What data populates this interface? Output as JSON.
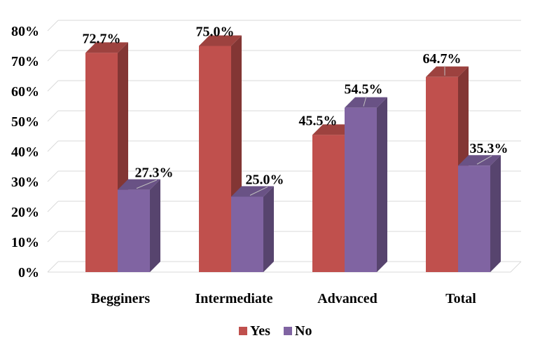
{
  "chart_data": {
    "type": "bar",
    "categories": [
      "Begginers",
      "Intermediate",
      "Advanced",
      "Total"
    ],
    "series": [
      {
        "name": "Yes",
        "values": [
          72.7,
          75.0,
          45.5,
          64.7
        ],
        "color": "#C0504D",
        "labels": [
          "72.7%",
          "75.0%",
          "45.5%",
          "64.7%"
        ]
      },
      {
        "name": "No",
        "values": [
          27.3,
          25.0,
          54.5,
          35.3
        ],
        "color": "#8064A2",
        "labels": [
          "27.3%",
          "25.0%",
          "54.5%",
          "35.3%"
        ]
      }
    ],
    "ylim": [
      0,
      80
    ],
    "yticks": [
      "0%",
      "10%",
      "20%",
      "30%",
      "40%",
      "50%",
      "60%",
      "70%",
      "80%"
    ],
    "grid": true,
    "legend_position": "bottom",
    "style": "3d-clustered-column"
  }
}
